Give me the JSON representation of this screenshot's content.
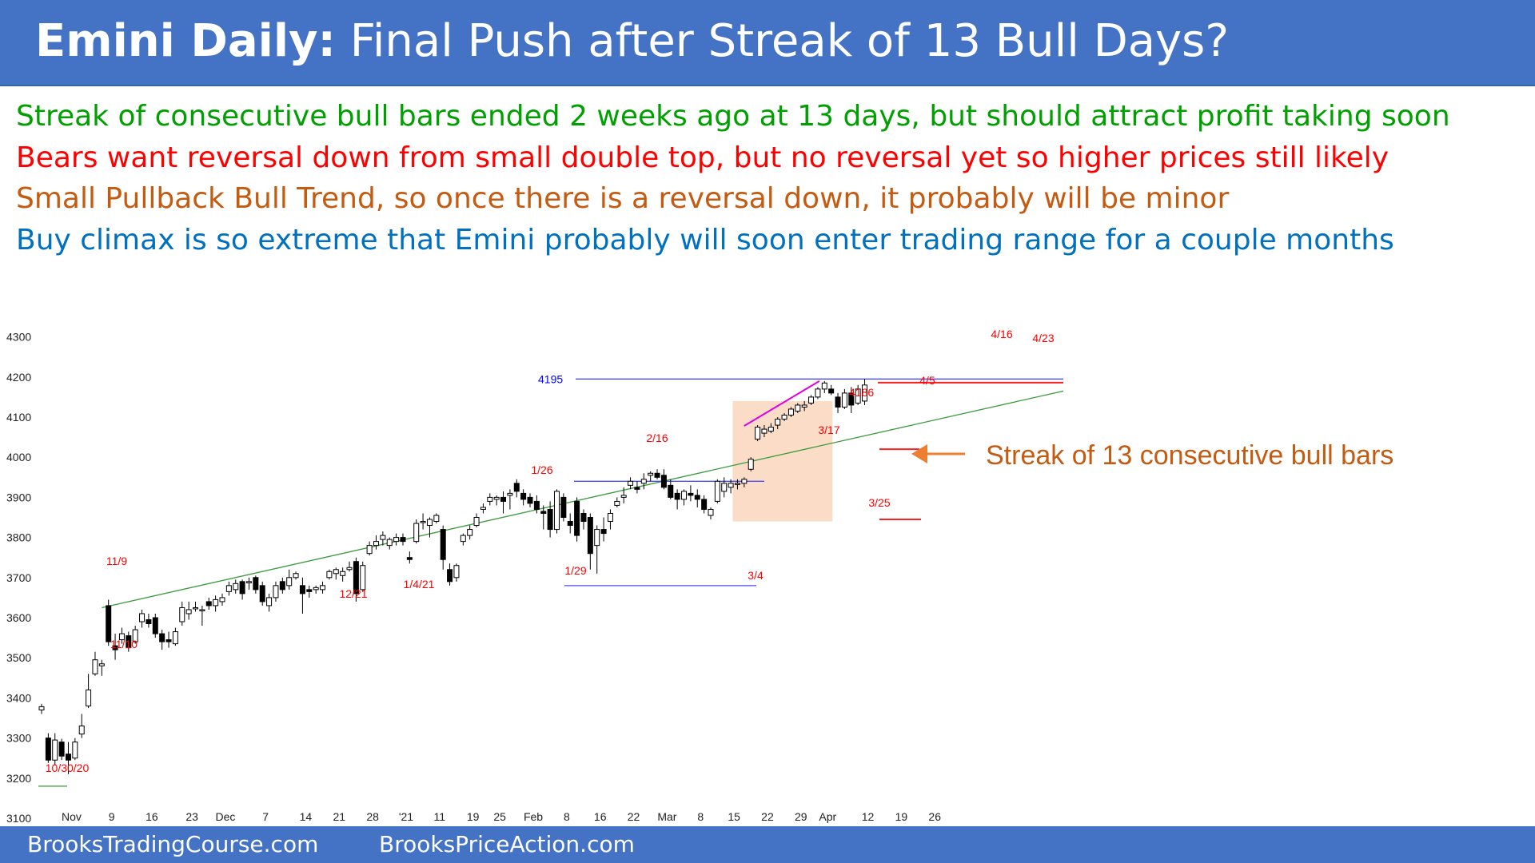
{
  "header": {
    "title_bold": "Emini Daily:",
    "title_rest": "Final Push after Streak of 13 Bull Days?"
  },
  "bullets": [
    {
      "text": "Streak of consecutive bull bars ended 2 weeks ago at 13 days, but should attract profit taking soon",
      "color": "#00A000"
    },
    {
      "text": "Bears want reversal down from small double top, but no reversal yet so higher prices still likely",
      "color": "#FF0000"
    },
    {
      "text": "Small Pullback Bull Trend, so once there is a reversal down, it probably will be minor",
      "color": "#C55A11"
    },
    {
      "text": "Buy climax is so extreme that Emini probably will soon enter trading range for a couple months",
      "color": "#0070C0"
    }
  ],
  "footer": {
    "left": "BrooksTradingCourse.com",
    "right": "BrooksPriceAction.com"
  },
  "chart_data": {
    "type": "candlestick",
    "ylim": [
      3100,
      4300
    ],
    "y_ticks": [
      3100,
      3200,
      3300,
      3400,
      3500,
      3600,
      3700,
      3800,
      3900,
      4000,
      4100,
      4200,
      4300
    ],
    "x_ticks": [
      "Nov",
      "9",
      "16",
      "23",
      "Dec",
      "7",
      "14",
      "21",
      "28",
      "'21",
      "11",
      "19",
      "25",
      "Feb",
      "8",
      "16",
      "22",
      "Mar",
      "8",
      "15",
      "22",
      "29",
      "Apr",
      "12",
      "19",
      "26"
    ],
    "ohlc": [
      [
        3370,
        3385,
        3360,
        3378
      ],
      [
        3300,
        3312,
        3238,
        3245
      ],
      [
        3245,
        3312,
        3232,
        3295
      ],
      [
        3290,
        3298,
        3245,
        3255
      ],
      [
        3260,
        3290,
        3210,
        3245
      ],
      [
        3250,
        3300,
        3245,
        3290
      ],
      [
        3310,
        3360,
        3300,
        3330
      ],
      [
        3380,
        3460,
        3375,
        3420
      ],
      [
        3460,
        3515,
        3455,
        3495
      ],
      [
        3480,
        3495,
        3455,
        3485
      ],
      [
        3630,
        3645,
        3530,
        3540
      ],
      [
        3530,
        3560,
        3495,
        3520
      ],
      [
        3545,
        3575,
        3535,
        3560
      ],
      [
        3555,
        3565,
        3515,
        3525
      ],
      [
        3540,
        3580,
        3535,
        3570
      ],
      [
        3590,
        3620,
        3575,
        3610
      ],
      [
        3595,
        3610,
        3575,
        3585
      ],
      [
        3600,
        3610,
        3550,
        3560
      ],
      [
        3560,
        3570,
        3520,
        3540
      ],
      [
        3545,
        3565,
        3525,
        3540
      ],
      [
        3535,
        3575,
        3530,
        3565
      ],
      [
        3590,
        3640,
        3580,
        3625
      ],
      [
        3610,
        3640,
        3595,
        3620
      ],
      [
        3625,
        3640,
        3615,
        3625
      ],
      [
        3620,
        3630,
        3580,
        3620
      ],
      [
        3640,
        3650,
        3620,
        3630
      ],
      [
        3630,
        3655,
        3615,
        3645
      ],
      [
        3640,
        3660,
        3630,
        3650
      ],
      [
        3665,
        3690,
        3655,
        3680
      ],
      [
        3670,
        3695,
        3660,
        3685
      ],
      [
        3690,
        3695,
        3645,
        3660
      ],
      [
        3690,
        3700,
        3670,
        3690
      ],
      [
        3700,
        3705,
        3660,
        3670
      ],
      [
        3680,
        3690,
        3630,
        3640
      ],
      [
        3630,
        3660,
        3615,
        3650
      ],
      [
        3650,
        3690,
        3640,
        3680
      ],
      [
        3690,
        3700,
        3660,
        3670
      ],
      [
        3680,
        3720,
        3670,
        3700
      ],
      [
        3700,
        3715,
        3695,
        3710
      ],
      [
        3680,
        3700,
        3610,
        3660
      ],
      [
        3670,
        3680,
        3650,
        3665
      ],
      [
        3670,
        3680,
        3660,
        3675
      ],
      [
        3670,
        3690,
        3660,
        3680
      ],
      [
        3700,
        3720,
        3695,
        3715
      ],
      [
        3710,
        3725,
        3695,
        3720
      ],
      [
        3705,
        3725,
        3690,
        3715
      ],
      [
        3720,
        3740,
        3715,
        3725
      ],
      [
        3740,
        3750,
        3640,
        3660
      ],
      [
        3670,
        3740,
        3665,
        3730
      ],
      [
        3760,
        3790,
        3755,
        3780
      ],
      [
        3780,
        3805,
        3770,
        3790
      ],
      [
        3795,
        3815,
        3780,
        3805
      ],
      [
        3780,
        3800,
        3770,
        3795
      ],
      [
        3790,
        3810,
        3780,
        3800
      ],
      [
        3800,
        3810,
        3780,
        3790
      ],
      [
        3750,
        3765,
        3735,
        3745
      ],
      [
        3790,
        3845,
        3785,
        3835
      ],
      [
        3840,
        3860,
        3820,
        3840
      ],
      [
        3830,
        3850,
        3800,
        3845
      ],
      [
        3840,
        3860,
        3835,
        3855
      ],
      [
        3820,
        3830,
        3720,
        3745
      ],
      [
        3720,
        3735,
        3680,
        3690
      ],
      [
        3700,
        3735,
        3690,
        3730
      ],
      [
        3790,
        3810,
        3780,
        3805
      ],
      [
        3805,
        3830,
        3795,
        3820
      ],
      [
        3830,
        3860,
        3825,
        3850
      ],
      [
        3870,
        3885,
        3860,
        3875
      ],
      [
        3890,
        3910,
        3880,
        3900
      ],
      [
        3895,
        3905,
        3880,
        3900
      ],
      [
        3900,
        3915,
        3860,
        3890
      ],
      [
        3905,
        3920,
        3870,
        3910
      ],
      [
        3935,
        3945,
        3900,
        3915
      ],
      [
        3910,
        3920,
        3880,
        3895
      ],
      [
        3900,
        3910,
        3875,
        3885
      ],
      [
        3890,
        3905,
        3860,
        3870
      ],
      [
        3865,
        3880,
        3820,
        3860
      ],
      [
        3870,
        3890,
        3800,
        3820
      ],
      [
        3820,
        3920,
        3810,
        3915
      ],
      [
        3900,
        3910,
        3840,
        3850
      ],
      [
        3840,
        3860,
        3810,
        3830
      ],
      [
        3890,
        3900,
        3790,
        3805
      ],
      [
        3860,
        3870,
        3820,
        3840
      ],
      [
        3850,
        3860,
        3720,
        3760
      ],
      [
        3780,
        3830,
        3710,
        3820
      ],
      [
        3820,
        3850,
        3790,
        3810
      ],
      [
        3840,
        3870,
        3820,
        3860
      ],
      [
        3880,
        3900,
        3875,
        3890
      ],
      [
        3900,
        3925,
        3885,
        3905
      ],
      [
        3930,
        3950,
        3920,
        3940
      ],
      [
        3925,
        3940,
        3910,
        3920
      ],
      [
        3935,
        3960,
        3920,
        3945
      ],
      [
        3955,
        3965,
        3940,
        3960
      ],
      [
        3960,
        3970,
        3945,
        3950
      ],
      [
        3955,
        3970,
        3920,
        3925
      ],
      [
        3930,
        3945,
        3895,
        3900
      ],
      [
        3910,
        3920,
        3870,
        3895
      ],
      [
        3895,
        3920,
        3880,
        3915
      ],
      [
        3910,
        3930,
        3890,
        3905
      ],
      [
        3905,
        3920,
        3875,
        3895
      ],
      [
        3895,
        3905,
        3860,
        3870
      ],
      [
        3855,
        3875,
        3845,
        3870
      ],
      [
        3890,
        3945,
        3885,
        3940
      ],
      [
        3915,
        3950,
        3900,
        3935
      ],
      [
        3925,
        3945,
        3910,
        3935
      ],
      [
        3935,
        3945,
        3920,
        3935
      ],
      [
        3935,
        3950,
        3925,
        3945
      ],
      [
        3970,
        4000,
        3965,
        3995
      ],
      [
        4045,
        4080,
        4040,
        4075
      ],
      [
        4060,
        4080,
        4050,
        4070
      ],
      [
        4065,
        4085,
        4060,
        4075
      ],
      [
        4080,
        4100,
        4070,
        4095
      ],
      [
        4095,
        4110,
        4090,
        4105
      ],
      [
        4105,
        4125,
        4100,
        4120
      ],
      [
        4115,
        4135,
        4110,
        4130
      ],
      [
        4125,
        4140,
        4115,
        4130
      ],
      [
        4135,
        4155,
        4130,
        4150
      ],
      [
        4150,
        4175,
        4145,
        4170
      ],
      [
        4170,
        4190,
        4160,
        4185
      ],
      [
        4170,
        4180,
        4155,
        4160
      ],
      [
        4150,
        4160,
        4110,
        4125
      ],
      [
        4125,
        4170,
        4120,
        4160
      ],
      [
        4160,
        4175,
        4110,
        4130
      ],
      [
        4135,
        4180,
        4130,
        4170
      ],
      [
        4140,
        4195,
        4130,
        4180
      ]
    ],
    "lines": [
      {
        "name": "4195",
        "y": 4195,
        "color": "#0000FF"
      },
      {
        "name": "4186",
        "y": 4186,
        "color": "#FF0000"
      }
    ],
    "price_labels": [
      {
        "text": "4195",
        "color": "#0000FF"
      },
      {
        "text": "4186",
        "color": "#FF0000"
      }
    ],
    "date_labels": [
      {
        "text": "11/9",
        "color": "#FF0000"
      },
      {
        "text": "11/10",
        "color": "#FF0000"
      },
      {
        "text": "10/30/20",
        "color": "#FF0000"
      },
      {
        "text": "12/21",
        "color": "#FF0000"
      },
      {
        "text": "1/4/21",
        "color": "#FF0000"
      },
      {
        "text": "1/26",
        "color": "#FF0000"
      },
      {
        "text": "1/29",
        "color": "#FF0000"
      },
      {
        "text": "2/16",
        "color": "#FF0000"
      },
      {
        "text": "3/4",
        "color": "#FF0000"
      },
      {
        "text": "3/17",
        "color": "#FF0000"
      },
      {
        "text": "3/25",
        "color": "#FF0000"
      },
      {
        "text": "4/5",
        "color": "#FF0000"
      },
      {
        "text": "4/16",
        "color": "#FF0000"
      },
      {
        "text": "4/23",
        "color": "#FF0000"
      }
    ],
    "annotation": {
      "text": "Streak of 13 consecutive bull bars",
      "color": "#C55A11",
      "arrow": "left"
    }
  }
}
